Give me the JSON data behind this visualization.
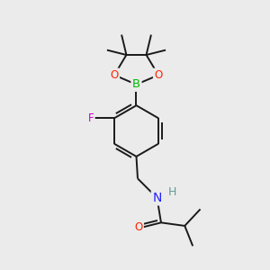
{
  "bg_color": "#ebebeb",
  "bond_color": "#1a1a1a",
  "atom_colors": {
    "B": "#00bb00",
    "O": "#ff2200",
    "F": "#cc00cc",
    "N": "#2222ff",
    "H_label": "#669999",
    "C": "#1a1a1a"
  },
  "figsize": [
    3.0,
    3.0
  ],
  "dpi": 100
}
